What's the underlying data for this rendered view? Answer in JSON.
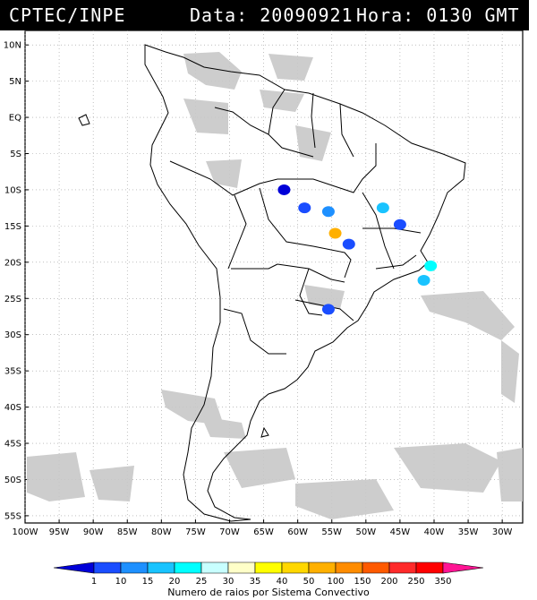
{
  "header": {
    "source": "CPTEC/INPE",
    "date_label": "Data: 20090921",
    "time_label": "Hora: 0130 GMT"
  },
  "map": {
    "lat_labels": [
      "10N",
      "5N",
      "EQ",
      "5S",
      "10S",
      "15S",
      "20S",
      "25S",
      "30S",
      "35S",
      "40S",
      "45S",
      "50S",
      "55S"
    ],
    "lon_labels": [
      "100W",
      "95W",
      "90W",
      "85W",
      "80W",
      "75W",
      "70W",
      "65W",
      "60W",
      "55W",
      "50W",
      "45W",
      "40W",
      "35W",
      "30W"
    ],
    "lat_range": [
      12,
      -56
    ],
    "lon_range": [
      -100,
      -27
    ],
    "gridlines": "dotted"
  },
  "legend": {
    "title": "Numero de raios por Sistema Convectivo",
    "labels": [
      "1",
      "10",
      "15",
      "20",
      "25",
      "30",
      "35",
      "40",
      "50",
      "100",
      "150",
      "200",
      "250",
      "350"
    ],
    "colors": [
      "#0000d8",
      "#1a4dff",
      "#1e90ff",
      "#19c3ff",
      "#00ffff",
      "#c8ffff",
      "#ffffc8",
      "#ffff00",
      "#ffd700",
      "#ffb000",
      "#ff8c00",
      "#ff5a00",
      "#ff2a2a",
      "#ff0000",
      "#ff1493"
    ]
  },
  "systems": [
    {
      "lon": -62,
      "lat": -10,
      "color": "#0000d8"
    },
    {
      "lon": -59,
      "lat": -12.5,
      "color": "#1a4dff"
    },
    {
      "lon": -55.5,
      "lat": -13,
      "color": "#1e90ff"
    },
    {
      "lon": -47.5,
      "lat": -12.5,
      "color": "#19c3ff"
    },
    {
      "lon": -54.5,
      "lat": -16,
      "color": "#ffb000"
    },
    {
      "lon": -52.5,
      "lat": -17.5,
      "color": "#1a4dff"
    },
    {
      "lon": -45,
      "lat": -14.8,
      "color": "#1a4dff"
    },
    {
      "lon": -40.5,
      "lat": -20.5,
      "color": "#00ffff"
    },
    {
      "lon": -41.5,
      "lat": -22.5,
      "color": "#19c3ff"
    },
    {
      "lon": -55.5,
      "lat": -26.5,
      "color": "#1a4dff"
    }
  ]
}
